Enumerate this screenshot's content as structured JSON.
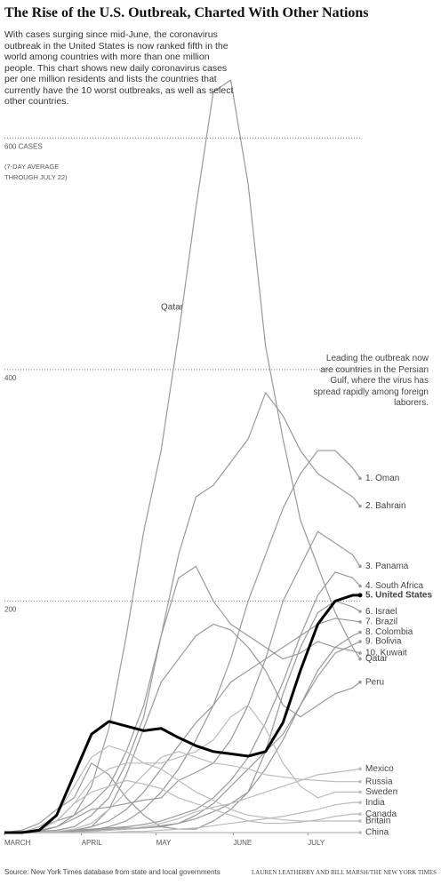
{
  "chart_data": {
    "type": "line",
    "title": "The Rise of the U.S. Outbreak, Charted With Other Nations",
    "subtitle": "With cases surging since mid-June, the coronavirus outbreak in the United States is now ranked fifth in the world among countries with more than one million people. This chart shows new daily coronavirus cases per one million residents and lists the countries that currently have the 10 worst outbreaks, as well as select other countries.",
    "y_note": "(7-DAY AVERAGE THROUGH JULY 22)",
    "annotation": "Leading the outbreak now are countries in the Persian Gulf, where the virus has spread rapidly among foreign laborers.",
    "source": "Source: New York Times database from state and local governments",
    "credit": "LAUREN LEATHERBY AND BILL MARSH/THE NEW YORK TIMES",
    "x": [
      0,
      7,
      14,
      21,
      28,
      35,
      42,
      49,
      56,
      63,
      70,
      77,
      84,
      91,
      98,
      105,
      112,
      119,
      126,
      133,
      140,
      143
    ],
    "xlim": [
      0,
      143
    ],
    "xticks": [
      {
        "value": 0,
        "label": "MARCH"
      },
      {
        "value": 31,
        "label": "APRIL"
      },
      {
        "value": 61,
        "label": "MAY"
      },
      {
        "value": 92,
        "label": "JUNE"
      },
      {
        "value": 122,
        "label": "JULY"
      }
    ],
    "ylim": [
      0,
      700
    ],
    "yticks": [
      200,
      400,
      {
        "value": 600,
        "label": "600 CASES"
      }
    ],
    "grid": true,
    "series": [
      {
        "name": "Qatar",
        "color": "#999999",
        "values": [
          0,
          1,
          2,
          5,
          15,
          40,
          90,
          170,
          260,
          330,
          430,
          540,
          640,
          650,
          560,
          420,
          340,
          270,
          230,
          190,
          160,
          150
        ]
      },
      {
        "name": "1. Oman",
        "color": "#999999",
        "values": [
          0,
          0,
          0,
          0,
          1,
          2,
          5,
          10,
          20,
          35,
          55,
          80,
          110,
          150,
          200,
          240,
          280,
          310,
          330,
          330,
          315,
          306
        ]
      },
      {
        "name": "2. Bahrain",
        "color": "#999999",
        "values": [
          0,
          0,
          5,
          10,
          15,
          25,
          40,
          70,
          110,
          170,
          240,
          290,
          300,
          320,
          340,
          380,
          360,
          330,
          310,
          300,
          290,
          282
        ]
      },
      {
        "name": "3. Panama",
        "color": "#999999",
        "values": [
          0,
          0,
          1,
          5,
          12,
          20,
          22,
          25,
          28,
          30,
          45,
          52,
          60,
          80,
          110,
          150,
          200,
          230,
          260,
          250,
          240,
          230
        ]
      },
      {
        "name": "4. South Africa",
        "color": "#999999",
        "values": [
          0,
          0,
          0,
          1,
          2,
          3,
          4,
          5,
          7,
          10,
          15,
          20,
          30,
          45,
          65,
          95,
          130,
          170,
          205,
          225,
          220,
          213
        ]
      },
      {
        "name": "6. Israel",
        "color": "#999999",
        "values": [
          0,
          2,
          8,
          20,
          30,
          60,
          50,
          30,
          15,
          5,
          3,
          3,
          10,
          20,
          35,
          70,
          120,
          160,
          190,
          200,
          195,
          191
        ]
      },
      {
        "name": "7. Brazil",
        "color": "#999999",
        "values": [
          0,
          0,
          0,
          1,
          2,
          5,
          10,
          20,
          35,
          55,
          75,
          95,
          110,
          130,
          140,
          150,
          160,
          170,
          180,
          185,
          183,
          182
        ]
      },
      {
        "name": "8. Colombia",
        "color": "#999999",
        "values": [
          0,
          0,
          0,
          1,
          1,
          2,
          3,
          4,
          4,
          5,
          8,
          12,
          18,
          25,
          35,
          55,
          80,
          110,
          140,
          160,
          170,
          173
        ]
      },
      {
        "name": "9. Bolivia",
        "color": "#999999",
        "values": [
          0,
          0,
          0,
          0,
          1,
          1,
          2,
          3,
          4,
          6,
          8,
          15,
          25,
          40,
          55,
          70,
          85,
          110,
          135,
          155,
          162,
          165
        ]
      },
      {
        "name": "10. Kuwait",
        "color": "#999999",
        "values": [
          0,
          0,
          1,
          2,
          5,
          15,
          30,
          60,
          100,
          170,
          220,
          230,
          200,
          180,
          170,
          160,
          150,
          155,
          165,
          160,
          157,
          155
        ]
      },
      {
        "name": "Peru",
        "color": "#999999",
        "values": [
          0,
          0,
          0,
          1,
          2,
          5,
          20,
          50,
          90,
          130,
          150,
          170,
          180,
          175,
          160,
          140,
          110,
          100,
          110,
          120,
          125,
          130
        ]
      },
      {
        "name": "Mexico",
        "color": "#bbbbbb",
        "values": [
          0,
          0,
          0,
          0,
          0,
          1,
          2,
          3,
          5,
          8,
          12,
          18,
          22,
          25,
          30,
          35,
          40,
          45,
          50,
          52,
          54,
          55
        ]
      },
      {
        "name": "Russia",
        "color": "#bbbbbb",
        "values": [
          0,
          0,
          0,
          1,
          3,
          8,
          20,
          35,
          50,
          65,
          70,
          65,
          60,
          58,
          55,
          50,
          48,
          46,
          45,
          44,
          44,
          44
        ]
      },
      {
        "name": "Sweden",
        "color": "#bbbbbb",
        "values": [
          0,
          1,
          3,
          10,
          25,
          45,
          55,
          60,
          60,
          60,
          65,
          70,
          80,
          100,
          110,
          90,
          60,
          40,
          30,
          35,
          35,
          35
        ]
      },
      {
        "name": "India",
        "color": "#bbbbbb",
        "values": [
          0,
          0,
          0,
          0,
          0,
          0,
          0,
          1,
          1,
          2,
          3,
          4,
          6,
          8,
          10,
          12,
          14,
          17,
          20,
          24,
          26,
          26
        ]
      },
      {
        "name": "Canada",
        "color": "#bbbbbb",
        "values": [
          0,
          0,
          2,
          10,
          25,
          35,
          40,
          45,
          42,
          38,
          30,
          25,
          20,
          15,
          10,
          8,
          8,
          9,
          11,
          14,
          16,
          16
        ]
      },
      {
        "name": "Britain",
        "color": "#bbbbbb",
        "values": [
          0,
          0,
          5,
          15,
          40,
          65,
          75,
          70,
          60,
          55,
          45,
          35,
          28,
          20,
          15,
          13,
          11,
          10,
          10,
          10,
          10,
          10
        ]
      },
      {
        "name": "China",
        "color": "#bbbbbb",
        "values": [
          0,
          0,
          0,
          0,
          0,
          0,
          0,
          0,
          0,
          0,
          0,
          0,
          0,
          0,
          0,
          0,
          0,
          0,
          0,
          0,
          0,
          0
        ]
      },
      {
        "name": "5. United States",
        "color": "#000000",
        "line_width": 3,
        "values": [
          0,
          0,
          2,
          15,
          50,
          85,
          96,
          92,
          88,
          90,
          82,
          75,
          70,
          68,
          66,
          70,
          95,
          140,
          180,
          200,
          205,
          205
        ]
      }
    ]
  }
}
